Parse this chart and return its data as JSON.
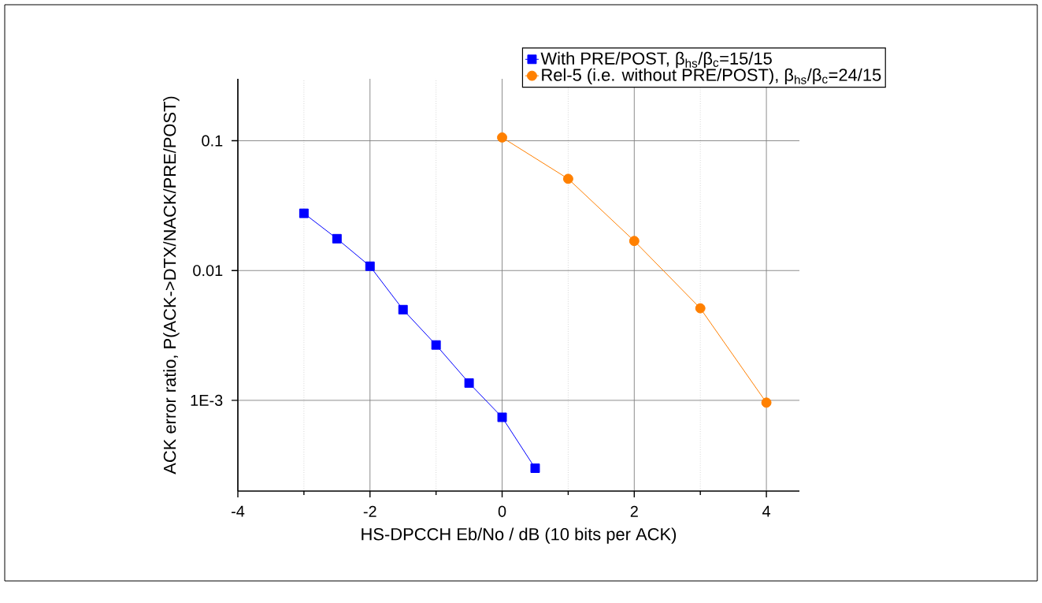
{
  "chart_data": {
    "type": "line",
    "xlabel": "HS-DPCCH Eb/No / dB   (10 bits per ACK)",
    "ylabel": "ACK error ratio, P(ACK->DTX/NACK/PRE/POST)",
    "log": "y",
    "grid": true,
    "legend": "top right",
    "line_style": "solid",
    "xlim": [
      -4,
      4.5
    ],
    "xticks": [
      -4,
      -2,
      0,
      2,
      4
    ],
    "ylim": [
      0.0002,
      0.3
    ],
    "yticks": [
      0.1,
      0.01,
      {
        "value": 0.001,
        "label": "1E-3"
      }
    ],
    "series": [
      {
        "name": "With PRE/POST, β$_{hs}$/β$_{c}$=15/15",
        "color": "#0000ff",
        "marker": "square",
        "x": [
          -3,
          -2.5,
          -2,
          -1.5,
          -1,
          -0.5,
          0,
          0.5
        ],
        "values": [
          0.0276,
          0.0176,
          0.0108,
          0.005,
          0.00267,
          0.00136,
          0.00074,
          0.0003
        ]
      },
      {
        "name": "Rel-5 (i.e. without PRE/POST), β$_{hs}$/β$_{c}$=24/15",
        "color": "#ff8000",
        "marker": "circle",
        "x": [
          0,
          1,
          2,
          3,
          4
        ],
        "values": [
          0.106,
          0.0509,
          0.0169,
          0.00512,
          0.00096
        ]
      }
    ]
  }
}
